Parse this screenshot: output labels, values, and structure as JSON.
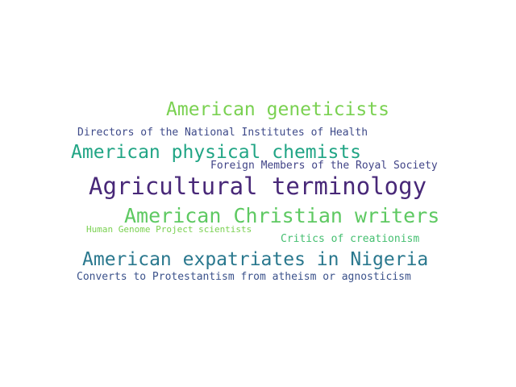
{
  "word_cloud": {
    "words": [
      {
        "text": "American geneticists",
        "color": "#7ad151"
      },
      {
        "text": "Directors of the National Institutes of Health",
        "color": "#3e4a89"
      },
      {
        "text": "American physical chemists",
        "color": "#21a585"
      },
      {
        "text": "Foreign Members of the Royal Society",
        "color": "#414487"
      },
      {
        "text": "Agricultural terminology",
        "color": "#482878"
      },
      {
        "text": "American Christian writers",
        "color": "#5ec962"
      },
      {
        "text": "Human Genome Project scientists",
        "color": "#7ad151"
      },
      {
        "text": "Critics of creationism",
        "color": "#44bf70"
      },
      {
        "text": "American expatriates in Nigeria",
        "color": "#2a788e"
      },
      {
        "text": "Converts to Protestantism from atheism or agnosticism",
        "color": "#3b528b"
      }
    ]
  }
}
